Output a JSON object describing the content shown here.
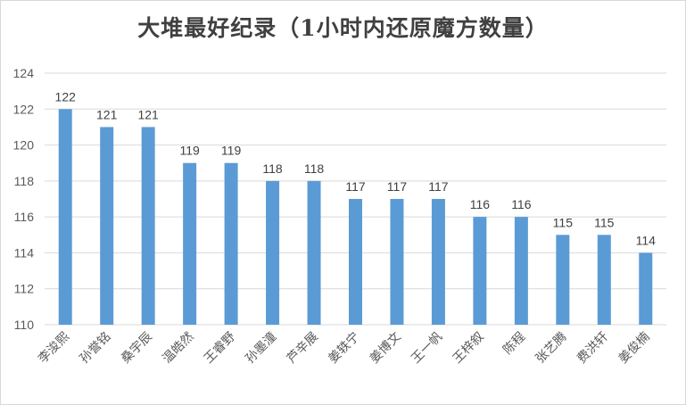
{
  "chart_data": {
    "type": "bar",
    "title": "大堆最好纪录（1小时内还原魔方数量）",
    "categories": [
      "李浚熙",
      "孙誉铭",
      "桑宇辰",
      "温皓然",
      "王睿野",
      "孙墨潼",
      "芦辛展",
      "姜轶宁",
      "姜博文",
      "王一帆",
      "王梓叙",
      "陈程",
      "张艺腾",
      "费洪轩",
      "姜俊楠"
    ],
    "values": [
      122,
      121,
      121,
      119,
      119,
      118,
      118,
      117,
      117,
      117,
      116,
      116,
      115,
      115,
      114
    ],
    "ylim": [
      110,
      124
    ],
    "yticks": [
      110,
      112,
      114,
      116,
      118,
      120,
      122,
      124
    ],
    "xlabel": "",
    "ylabel": "",
    "grid": true,
    "bar_color": "#5b9bd5",
    "grid_color": "#d9d9d9"
  }
}
